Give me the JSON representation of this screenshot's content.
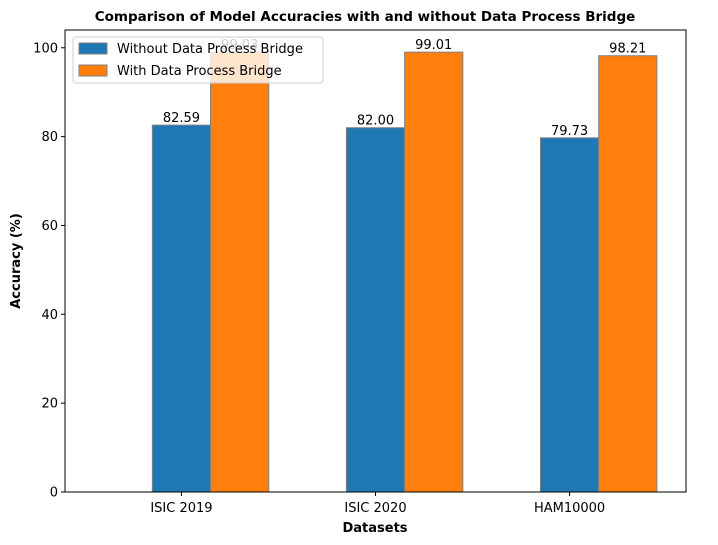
{
  "chart_data": {
    "type": "bar",
    "title": "Comparison of Model Accuracies with and without Data Process Bridge",
    "xlabel": "Datasets",
    "ylabel": "Accuracy (%)",
    "categories": [
      "ISIC 2019",
      "ISIC 2020",
      "HAM10000"
    ],
    "series": [
      {
        "name": "Without Data Process Bridge",
        "color": "#1f77b4",
        "values": [
          82.59,
          82.0,
          79.73
        ],
        "labels": [
          "82.59",
          "82.00",
          "79.73"
        ]
      },
      {
        "name": "With Data Process Bridge",
        "color": "#ff7f0e",
        "values": [
          99.03,
          99.01,
          98.21
        ],
        "labels": [
          "99.03",
          "99.01",
          "98.21"
        ]
      }
    ],
    "ylim": [
      0,
      104
    ],
    "yticks": [
      0,
      20,
      40,
      60,
      80,
      100
    ],
    "ytick_labels": [
      "0",
      "20",
      "40",
      "60",
      "80",
      "100"
    ],
    "grid": false,
    "legend_position": "upper-left",
    "bar_edge_color": "#808080"
  }
}
